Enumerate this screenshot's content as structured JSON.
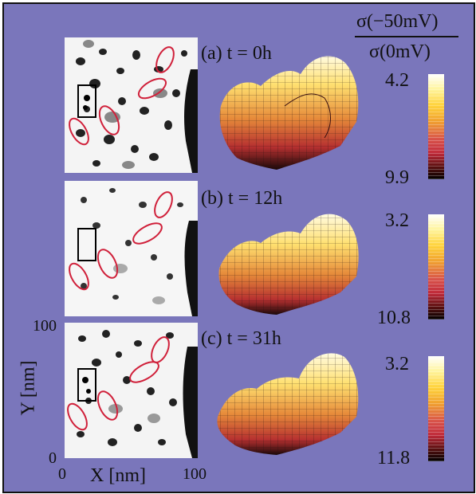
{
  "colorbar_title": {
    "numerator": "σ(−50mV)",
    "denominator": "σ(0mV)"
  },
  "panels": [
    {
      "label": "(a) t = 0h",
      "cbar_top": "4.2",
      "cbar_bottom": "9.9"
    },
    {
      "label": "(b) t = 12h",
      "cbar_top": "3.2",
      "cbar_bottom": "10.8"
    },
    {
      "label": "(c) t = 31h",
      "cbar_top": "3.2",
      "cbar_bottom": "11.8"
    }
  ],
  "axes": {
    "x_label": "X [nm]",
    "y_label": "Y [nm]",
    "x_tick_min": "0",
    "x_tick_max": "100",
    "y_tick_min": "0",
    "y_tick_max": "100"
  },
  "colors": {
    "background": "#7a76bb",
    "ellipse": "#d0203a",
    "highlight_box": "#000000"
  }
}
